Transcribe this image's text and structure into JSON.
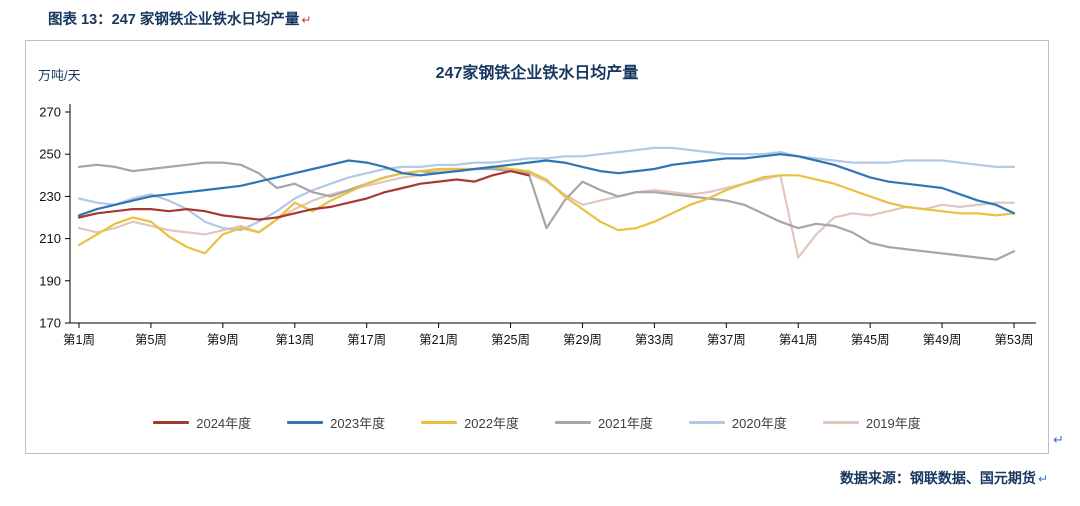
{
  "page": {
    "caption": "图表 13：247 家钢铁企业铁水日均产量",
    "return_mark": "↵",
    "source": "数据来源：钢联数据、国元期货"
  },
  "colors": {
    "heading_navy": "#17375E",
    "caption_mark_red": "#E03131",
    "body_mark_blue": "#4472C4",
    "axis_black": "#000000",
    "box_border_gray": "#BFBFBF"
  },
  "chart_data": {
    "type": "line",
    "title": "247家钢铁企业铁水日均产量",
    "unit_label": "万吨/天",
    "xlabel": "",
    "ylabel": "万吨/天",
    "ylim": [
      170,
      270
    ],
    "y_ticks": [
      170,
      190,
      210,
      230,
      250,
      270
    ],
    "weeks": 53,
    "x_tick_weeks": [
      1,
      5,
      9,
      13,
      17,
      21,
      25,
      29,
      33,
      37,
      41,
      45,
      49,
      53
    ],
    "x_ticks": [
      "第1周",
      "第5周",
      "第9周",
      "第13周",
      "第17周",
      "第21周",
      "第25周",
      "第29周",
      "第33周",
      "第37周",
      "第41周",
      "第45周",
      "第49周",
      "第53周"
    ],
    "grid": false,
    "legend_position": "bottom",
    "series": [
      {
        "name": "2024年度",
        "color": "#A63A32",
        "values": [
          220,
          222,
          223,
          224,
          224,
          223,
          224,
          223,
          221,
          220,
          219,
          220,
          222,
          224,
          225,
          227,
          229,
          232,
          234,
          236,
          237,
          238,
          237,
          240,
          242,
          240
        ]
      },
      {
        "name": "2023年度",
        "color": "#2E75B6",
        "values": [
          221,
          224,
          226,
          228,
          230,
          231,
          232,
          233,
          234,
          235,
          237,
          239,
          241,
          243,
          245,
          247,
          246,
          244,
          241,
          240,
          241,
          242,
          243,
          244,
          245,
          246,
          247,
          246,
          244,
          242,
          241,
          242,
          243,
          245,
          246,
          247,
          248,
          248,
          249,
          250,
          249,
          247,
          245,
          242,
          239,
          237,
          236,
          235,
          234,
          231,
          228,
          226,
          222
        ]
      },
      {
        "name": "2022年度",
        "color": "#E8C23E",
        "values": [
          207,
          212,
          217,
          220,
          218,
          211,
          206,
          203,
          212,
          215,
          213,
          219,
          227,
          223,
          228,
          232,
          236,
          239,
          241,
          242,
          243,
          243,
          243,
          244,
          243,
          242,
          238,
          230,
          224,
          218,
          214,
          215,
          218,
          222,
          226,
          229,
          233,
          236,
          239,
          240,
          240,
          238,
          236,
          233,
          230,
          227,
          225,
          224,
          223,
          222,
          222,
          221,
          222
        ]
      },
      {
        "name": "2021年度",
        "color": "#A6A6A6",
        "values": [
          244,
          245,
          244,
          242,
          243,
          244,
          245,
          246,
          246,
          245,
          241,
          234,
          236,
          232,
          230,
          233,
          236,
          239,
          241,
          242,
          241,
          242,
          243,
          243,
          242,
          241,
          215,
          228,
          237,
          233,
          230,
          232,
          232,
          231,
          230,
          229,
          228,
          226,
          222,
          218,
          215,
          217,
          216,
          213,
          208,
          206,
          205,
          204,
          203,
          202,
          201,
          200,
          204
        ]
      },
      {
        "name": "2020年度",
        "color": "#B4C7E7",
        "values": [
          229,
          227,
          226,
          229,
          231,
          228,
          224,
          218,
          215,
          214,
          218,
          223,
          229,
          233,
          236,
          239,
          241,
          243,
          244,
          244,
          245,
          245,
          246,
          246,
          247,
          248,
          248,
          249,
          249,
          250,
          251,
          252,
          253,
          253,
          252,
          251,
          250,
          250,
          250,
          251,
          249,
          248,
          247,
          246,
          246,
          246,
          247,
          247,
          247,
          246,
          245,
          244,
          244
        ]
      },
      {
        "name": "2019年度",
        "color": "#E2C6BE",
        "values": [
          215,
          213,
          215,
          218,
          216,
          214,
          213,
          212,
          214,
          216,
          213,
          219,
          224,
          228,
          231,
          233,
          235,
          237,
          239,
          240,
          242,
          243,
          243,
          244,
          243,
          241,
          237,
          231,
          226,
          228,
          230,
          232,
          233,
          232,
          231,
          232,
          234,
          236,
          238,
          240,
          201,
          212,
          220,
          222,
          221,
          223,
          225,
          224,
          226,
          225,
          226,
          227,
          227
        ]
      }
    ]
  }
}
